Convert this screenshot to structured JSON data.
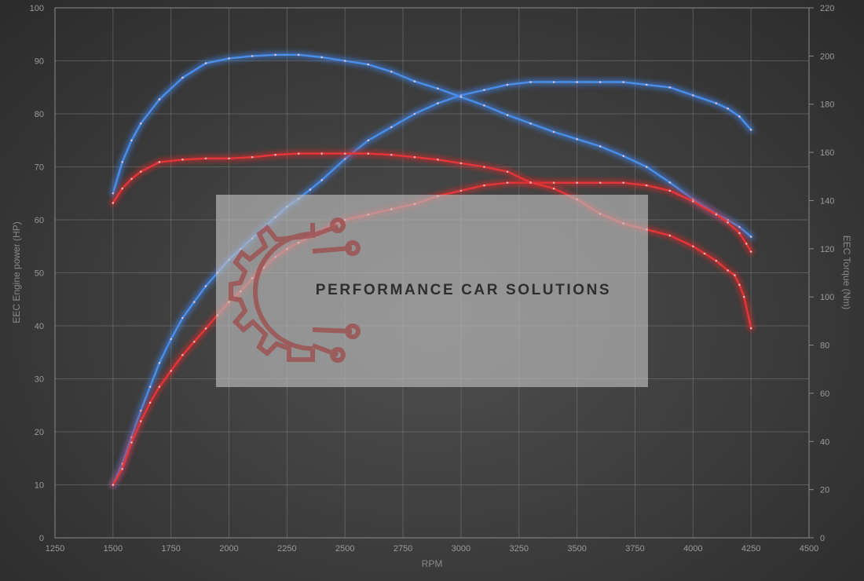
{
  "chart_data": {
    "type": "line",
    "xlabel": "RPM",
    "ylabel_left": "EEC Engine power (HP)",
    "ylabel_right": "EEC Torque (Nm)",
    "xlim": [
      1250,
      4500
    ],
    "ylim_left": [
      0,
      100
    ],
    "ylim_right": [
      0,
      220
    ],
    "x_ticks": [
      "1250",
      "1500",
      "1750",
      "2000",
      "2250",
      "2500",
      "2750",
      "3000",
      "3250",
      "3500",
      "3750",
      "4000",
      "4250",
      "4500"
    ],
    "y_left_ticks": [
      "0",
      "10",
      "20",
      "30",
      "40",
      "50",
      "60",
      "70",
      "80",
      "90",
      "100"
    ],
    "y_right_ticks": [
      "0",
      "20",
      "40",
      "60",
      "80",
      "100",
      "120",
      "140",
      "160",
      "180",
      "200",
      "220"
    ],
    "grid": true,
    "series": [
      {
        "axis": "left",
        "color": "#4a8ee8",
        "glow": "#3f7fe0",
        "x": [
          1500,
          1540,
          1580,
          1620,
          1660,
          1700,
          1750,
          1800,
          1850,
          1900,
          1950,
          2000,
          2050,
          2100,
          2150,
          2200,
          2250,
          2300,
          2350,
          2400,
          2500,
          2600,
          2700,
          2800,
          2900,
          3000,
          3100,
          3200,
          3300,
          3400,
          3500,
          3600,
          3700,
          3800,
          3900,
          4000,
          4100,
          4150,
          4200,
          4250
        ],
        "y": [
          10,
          14,
          19,
          24,
          28.5,
          33,
          37.5,
          41.5,
          44.5,
          47.5,
          50,
          52.5,
          54.5,
          56.5,
          58.5,
          60.5,
          62.5,
          64,
          65.7,
          67.5,
          71.5,
          75,
          77.5,
          80,
          82,
          83.5,
          84.5,
          85.5,
          86,
          86,
          86,
          86,
          86,
          85.5,
          85,
          83.5,
          82,
          81,
          79.5,
          77
        ]
      },
      {
        "axis": "right",
        "color": "#4a8ee8",
        "glow": "#3f7fe0",
        "x": [
          1500,
          1540,
          1580,
          1620,
          1700,
          1800,
          1900,
          2000,
          2100,
          2200,
          2300,
          2400,
          2500,
          2600,
          2700,
          2800,
          2900,
          3000,
          3100,
          3200,
          3300,
          3400,
          3500,
          3600,
          3700,
          3800,
          3900,
          4000,
          4100,
          4150,
          4200,
          4250
        ],
        "y": [
          143,
          156,
          165,
          172,
          182,
          191,
          197,
          199,
          200,
          200.5,
          200.5,
          199.5,
          198,
          196.5,
          193.5,
          189.5,
          186.5,
          183,
          179.5,
          175.5,
          172,
          168.5,
          165.5,
          162.5,
          158.5,
          154,
          147.5,
          140.5,
          134.5,
          132,
          129,
          125
        ]
      },
      {
        "axis": "left",
        "color": "#e2363a",
        "glow": "#d12a2a",
        "x": [
          1500,
          1540,
          1580,
          1620,
          1660,
          1700,
          1750,
          1800,
          1850,
          1900,
          1950,
          2000,
          2050,
          2100,
          2150,
          2200,
          2250,
          2300,
          2350,
          2400,
          2500,
          2600,
          2700,
          2800,
          2900,
          3000,
          3100,
          3200,
          3300,
          3400,
          3500,
          3600,
          3700,
          3800,
          3900,
          4000,
          4100,
          4150,
          4200,
          4230,
          4250
        ],
        "y": [
          10,
          13,
          18,
          22,
          25.5,
          28.5,
          31.5,
          34.5,
          37,
          39.5,
          42,
          44.5,
          46.5,
          49,
          51,
          53,
          54.5,
          55.7,
          56.8,
          58,
          60,
          61,
          62,
          63,
          64.5,
          65.5,
          66.5,
          67,
          67,
          67,
          67,
          67,
          67,
          66.5,
          65.5,
          63.5,
          61,
          59.5,
          57.5,
          55.5,
          54
        ]
      },
      {
        "axis": "right",
        "color": "#e2363a",
        "glow": "#d12a2a",
        "x": [
          1500,
          1540,
          1580,
          1620,
          1700,
          1800,
          1900,
          2000,
          2100,
          2200,
          2300,
          2400,
          2500,
          2600,
          2700,
          2800,
          2900,
          3000,
          3100,
          3200,
          3300,
          3400,
          3500,
          3600,
          3700,
          3800,
          3900,
          4000,
          4050,
          4100,
          4150,
          4180,
          4200,
          4220,
          4250
        ],
        "y": [
          139,
          145,
          149,
          152,
          156,
          157,
          157.5,
          157.5,
          158,
          159,
          159.5,
          159.5,
          159.5,
          159.5,
          159,
          158,
          157,
          155.5,
          154,
          152,
          147.5,
          145,
          140.5,
          134.5,
          130.5,
          128,
          125.5,
          121,
          118,
          115,
          111,
          109,
          105,
          100,
          87
        ]
      }
    ]
  },
  "watermark": {
    "brand": "PERFORMANCE CAR SOLUTIONS",
    "logo": "gear-circuit-logo",
    "logo_color": "#9e4a4a",
    "panel_color": "#bdbdbd"
  }
}
